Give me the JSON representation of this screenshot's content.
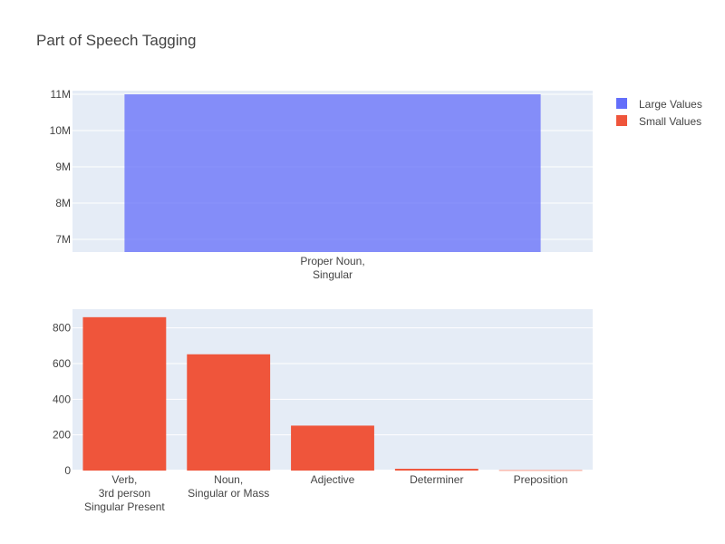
{
  "chart_data": [
    {
      "type": "bar",
      "title": "Part of Speech Tagging",
      "categories": [
        [
          "Proper Noun,",
          "Singular"
        ]
      ],
      "series": [
        {
          "name": "Large Values",
          "values": [
            11000000
          ]
        }
      ],
      "y_ticks": [
        "7M",
        "8M",
        "9M",
        "10M",
        "11M"
      ],
      "ylim": [
        6650000,
        11100000
      ],
      "grid": true,
      "legend": "top-right",
      "color": "#636efa"
    },
    {
      "type": "bar",
      "categories": [
        [
          "Verb,",
          "3rd person",
          "Singular Present"
        ],
        [
          "Noun,",
          "Singular or Mass"
        ],
        [
          "Adjective"
        ],
        [
          "Determiner"
        ],
        [
          "Preposition"
        ]
      ],
      "series": [
        {
          "name": "Small Values",
          "values": [
            860,
            652,
            252,
            10,
            2
          ]
        }
      ],
      "y_ticks": [
        "0",
        "200",
        "400",
        "600",
        "800"
      ],
      "ylim": [
        0,
        905
      ],
      "grid": true,
      "color": "#ef553b"
    }
  ],
  "legend": {
    "items": [
      {
        "label": "Large Values",
        "color": "#636efa"
      },
      {
        "label": "Small Values",
        "color": "#ef553b"
      }
    ]
  }
}
